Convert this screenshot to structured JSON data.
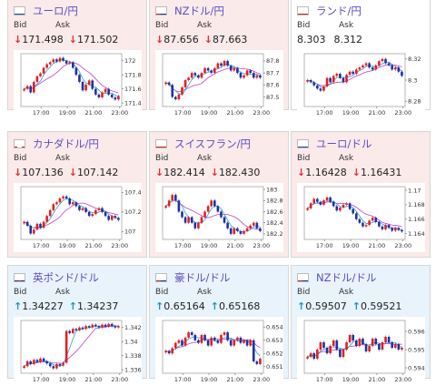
{
  "colors": {
    "down": "#e03030",
    "up": "#1f8fcf",
    "pair_text": "#5a4fbf",
    "candle_up": "#e02020",
    "candle_down": "#2030a0",
    "ma_short": "#28a6d8",
    "ma_long": "#c040d0"
  },
  "labels": {
    "bid": "Bid",
    "ask": "Ask"
  },
  "time_ticks": [
    "17:00",
    "19:00",
    "21:00",
    "23:00"
  ],
  "cards": [
    {
      "pair": "ユーロ/円",
      "flag": "eu-jp-flag-icon",
      "direction": "down",
      "arrow": "↓",
      "bid": "171.498",
      "ask": "171.502",
      "chart_data": {
        "type": "candlestick",
        "y_ticks": [
          "172",
          "171.8",
          "171.6",
          "171.4"
        ],
        "ylim": [
          171.35,
          172.1
        ],
        "closes": [
          171.6,
          171.64,
          171.55,
          171.7,
          171.78,
          171.82,
          171.9,
          171.95,
          171.98,
          172.02,
          171.99,
          172.04,
          172.0,
          171.96,
          171.98,
          171.9,
          171.8,
          171.7,
          171.58,
          171.66,
          171.72,
          171.6,
          171.52,
          171.48,
          171.55,
          171.6,
          171.52,
          171.48,
          171.45,
          171.5
        ]
      }
    },
    {
      "pair": "NZドル/円",
      "flag": "nz-jp-flag-icon",
      "direction": "down",
      "arrow": "↓",
      "bid": "87.656",
      "ask": "87.663",
      "chart_data": {
        "type": "candlestick",
        "y_ticks": [
          "87.8",
          "87.7",
          "87.6",
          "87.5"
        ],
        "ylim": [
          87.42,
          87.86
        ],
        "closes": [
          87.62,
          87.6,
          87.5,
          87.48,
          87.52,
          87.58,
          87.64,
          87.66,
          87.7,
          87.68,
          87.66,
          87.7,
          87.74,
          87.72,
          87.7,
          87.74,
          87.78,
          87.76,
          87.8,
          87.76,
          87.72,
          87.74,
          87.7,
          87.66,
          87.68,
          87.72,
          87.7,
          87.66,
          87.68,
          87.66
        ]
      }
    },
    {
      "pair": "ランド/円",
      "flag": "za-jp-flag-icon",
      "direction": "neutral",
      "arrow": "",
      "bid": "8.303",
      "ask": "8.312",
      "chart_data": {
        "type": "candlestick",
        "y_ticks": [
          "8.32",
          "8.3",
          "8.28"
        ],
        "ylim": [
          8.275,
          8.325
        ],
        "closes": [
          8.3,
          8.298,
          8.295,
          8.292,
          8.29,
          8.294,
          8.302,
          8.298,
          8.304,
          8.306,
          8.302,
          8.298,
          8.305,
          8.308,
          8.306,
          8.31,
          8.312,
          8.314,
          8.316,
          8.312,
          8.31,
          8.314,
          8.318,
          8.32,
          8.316,
          8.314,
          8.31,
          8.312,
          8.308,
          8.304
        ]
      }
    },
    {
      "pair": "カナダドル/円",
      "flag": "ca-jp-flag-icon",
      "direction": "down",
      "arrow": "↓",
      "bid": "107.136",
      "ask": "107.142",
      "chart_data": {
        "type": "candlestick",
        "y_ticks": [
          "107.4",
          "107.2",
          "107"
        ],
        "ylim": [
          106.92,
          107.46
        ],
        "closes": [
          107.1,
          107.06,
          106.98,
          107.02,
          107.08,
          107.04,
          107.1,
          107.16,
          107.22,
          107.28,
          107.3,
          107.34,
          107.36,
          107.34,
          107.28,
          107.3,
          107.26,
          107.22,
          107.24,
          107.2,
          107.16,
          107.18,
          107.22,
          107.24,
          107.2,
          107.16,
          107.12,
          107.16,
          107.14,
          107.12
        ]
      }
    },
    {
      "pair": "スイスフラン/円",
      "flag": "ch-jp-flag-icon",
      "direction": "down",
      "arrow": "↓",
      "bid": "182.414",
      "ask": "182.430",
      "chart_data": {
        "type": "candlestick",
        "y_ticks": [
          "183",
          "182.8",
          "182.6",
          "182.4",
          "182.2"
        ],
        "ylim": [
          182.1,
          183.05
        ],
        "closes": [
          182.7,
          182.8,
          182.9,
          182.8,
          182.6,
          182.5,
          182.4,
          182.5,
          182.4,
          182.3,
          182.4,
          182.5,
          182.6,
          182.7,
          182.8,
          182.7,
          182.6,
          182.5,
          182.4,
          182.3,
          182.2,
          182.3,
          182.25,
          182.2,
          182.25,
          182.3,
          182.35,
          182.4,
          182.3,
          182.25
        ]
      }
    },
    {
      "pair": "ユーロ/ドル",
      "flag": "eu-us-flag-icon",
      "direction": "down",
      "arrow": "↓",
      "bid": "1.16428",
      "ask": "1.16431",
      "chart_data": {
        "type": "candlestick",
        "y_ticks": [
          "1.17",
          "1.168",
          "1.166",
          "1.164"
        ],
        "ylim": [
          1.1632,
          1.1705
        ],
        "closes": [
          1.1675,
          1.1682,
          1.1688,
          1.1684,
          1.168,
          1.1686,
          1.169,
          1.1684,
          1.1678,
          1.1672,
          1.1676,
          1.168,
          1.1682,
          1.1674,
          1.1668,
          1.166,
          1.1655,
          1.165,
          1.1652,
          1.1658,
          1.1662,
          1.1656,
          1.165,
          1.1646,
          1.1652,
          1.1648,
          1.1644,
          1.1648,
          1.1645,
          1.1643
        ]
      }
    },
    {
      "pair": "英ポンド/ドル",
      "flag": "gb-us-flag-icon",
      "direction": "up",
      "arrow": "↑",
      "bid": "1.34227",
      "ask": "1.34237",
      "chart_data": {
        "type": "candlestick",
        "y_ticks": [
          "1.342",
          "1.34",
          "1.338",
          "1.336"
        ],
        "ylim": [
          1.3355,
          1.343
        ],
        "closes": [
          1.3365,
          1.3372,
          1.3368,
          1.3374,
          1.3371,
          1.3376,
          1.3372,
          1.3369,
          1.3365,
          1.3362,
          1.3368,
          1.3366,
          1.337,
          1.3415,
          1.3412,
          1.3418,
          1.3416,
          1.342,
          1.3418,
          1.3422,
          1.342,
          1.3424,
          1.3422,
          1.342,
          1.3424,
          1.3421,
          1.3425,
          1.3422,
          1.342,
          1.3422
        ]
      }
    },
    {
      "pair": "豪ドル/ドル",
      "flag": "au-us-flag-icon",
      "direction": "up",
      "arrow": "↑",
      "bid": "0.65164",
      "ask": "0.65168",
      "chart_data": {
        "type": "candlestick",
        "y_ticks": [
          "0.654",
          "0.653",
          "0.652",
          "0.651"
        ],
        "ylim": [
          0.6505,
          0.6545
        ],
        "closes": [
          0.6522,
          0.652,
          0.6524,
          0.6528,
          0.653,
          0.6526,
          0.6532,
          0.6536,
          0.6534,
          0.653,
          0.6528,
          0.6534,
          0.653,
          0.6526,
          0.6532,
          0.653,
          0.6528,
          0.6534,
          0.6536,
          0.653,
          0.6526,
          0.653,
          0.6532,
          0.6528,
          0.653,
          0.6526,
          0.653,
          0.6514,
          0.6512,
          0.6516
        ]
      }
    },
    {
      "pair": "NZドル/ドル",
      "flag": "nz-us-flag-icon",
      "direction": "up",
      "arrow": "↑",
      "bid": "0.59507",
      "ask": "0.59521",
      "chart_data": {
        "type": "candlestick",
        "y_ticks": [
          "0.596",
          "0.595",
          "0.594"
        ],
        "ylim": [
          0.5937,
          0.5966
        ],
        "closes": [
          0.5946,
          0.5948,
          0.5945,
          0.595,
          0.5954,
          0.5951,
          0.5948,
          0.5952,
          0.5955,
          0.595,
          0.5946,
          0.595,
          0.5954,
          0.5958,
          0.5955,
          0.5952,
          0.5956,
          0.5953,
          0.5949,
          0.5952,
          0.5956,
          0.5953,
          0.595,
          0.5954,
          0.5957,
          0.5954,
          0.5951,
          0.5953,
          0.595,
          0.5951
        ]
      }
    }
  ]
}
